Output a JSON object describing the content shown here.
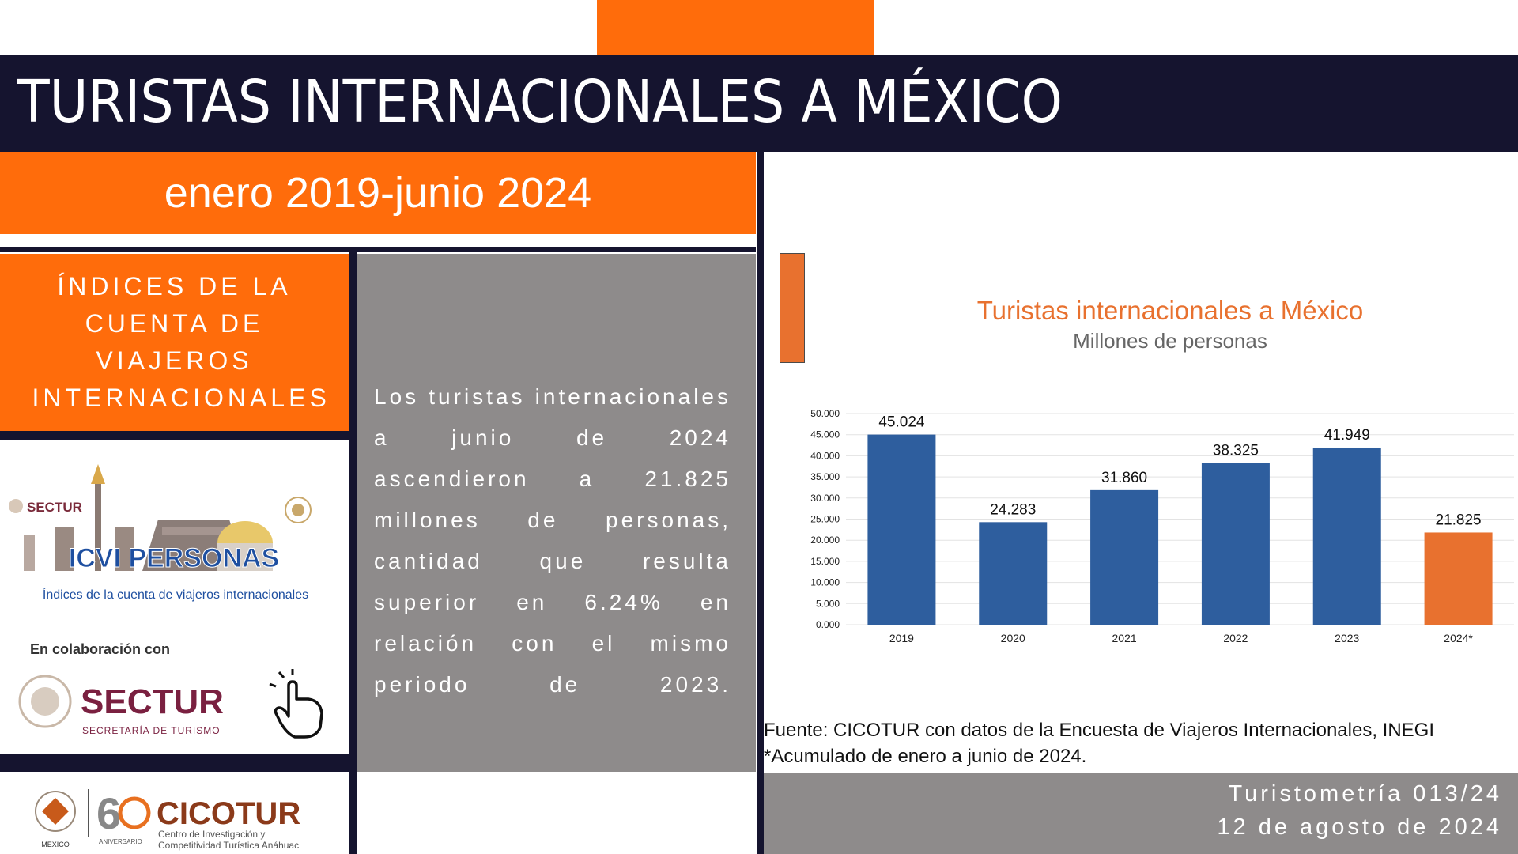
{
  "header": {
    "title": "TURISTAS INTERNACIONALES A MÉXICO",
    "period": "enero 2019-junio 2024"
  },
  "colors": {
    "orange": "#ff6c0b",
    "navy": "#15142f",
    "gray": "#8e8b8b",
    "bar_blue": "#2e5e9e",
    "bar_orange": "#e8712f"
  },
  "left_panel": {
    "indices_label": "ÍNDICES DE LA CUENTA DE VIAJEROS INTERNACIONALES",
    "sectur_small": "SECTUR",
    "icvi_title": "ICVI PERSONAS",
    "icvi_subtitle": "Índices de la cuenta de viajeros internacionales",
    "collab_label": "En colaboración con",
    "sectur_big": "SECTUR",
    "sectur_caption": "SECRETARÍA DE TURISMO",
    "cicotur_name": "CICOTUR",
    "cicotur_line1": "Centro de Investigación y",
    "cicotur_line2": "Competitividad Turística Anáhuac",
    "aniversario": "ANIVERSARIO",
    "mexico": "MÉXICO"
  },
  "summary": {
    "text": "Los turistas internacionales a junio de 2024 ascendieron a 21.825 millones de personas, cantidad que resulta superior en 6.24% en relación con el mismo periodo de 2023."
  },
  "chart_data": {
    "type": "bar",
    "title": "Turistas internacionales a México",
    "subtitle": "Millones de personas",
    "categories": [
      "2019",
      "2020",
      "2021",
      "2022",
      "2023",
      "2024*"
    ],
    "values": [
      45.024,
      24.283,
      31.86,
      38.325,
      41.949,
      21.825
    ],
    "value_labels": [
      "45.024",
      "24.283",
      "31.860",
      "38.325",
      "41.949",
      "21.825"
    ],
    "ylim": [
      0,
      50
    ],
    "yticks": [
      "0.000",
      "5.000",
      "10.000",
      "15.000",
      "20.000",
      "25.000",
      "30.000",
      "35.000",
      "40.000",
      "45.000",
      "50.000"
    ],
    "grid": true,
    "legend": "none"
  },
  "source": {
    "line1": "Fuente: CICOTUR con datos de la Encuesta de Viajeros Internacionales, INEGI",
    "line2": "*Acumulado de enero a junio de 2024."
  },
  "footer": {
    "line1": "Turistometría 013/24",
    "line2": "12 de agosto de 2024"
  }
}
